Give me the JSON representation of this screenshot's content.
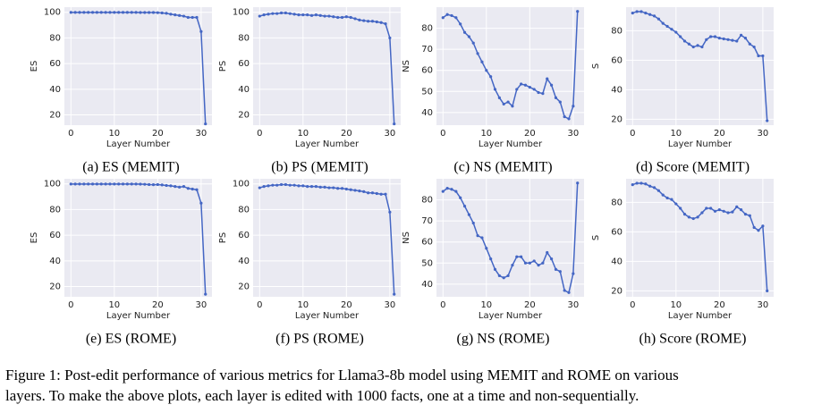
{
  "chart_data": [
    {
      "type": "line",
      "caption": "(a) ES (MEMIT)",
      "xlabel": "Layer Number",
      "ylabel": "ES",
      "color": "#4466c4",
      "grid": true,
      "x": [
        0,
        1,
        2,
        3,
        4,
        5,
        6,
        7,
        8,
        9,
        10,
        11,
        12,
        13,
        14,
        15,
        16,
        17,
        18,
        19,
        20,
        21,
        22,
        23,
        24,
        25,
        26,
        27,
        28,
        29,
        30,
        31
      ],
      "values": [
        99.9,
        99.9,
        99.9,
        99.9,
        99.9,
        99.9,
        99.9,
        99.9,
        99.9,
        99.9,
        99.9,
        99.9,
        99.9,
        99.9,
        99.9,
        99.9,
        99.8,
        99.8,
        99.8,
        99.8,
        99.7,
        99.5,
        99.2,
        98.5,
        98,
        97.5,
        97,
        96,
        96,
        96,
        85,
        13
      ],
      "xlim": [
        -1.5,
        32.5
      ],
      "ylim": [
        12,
        104
      ],
      "xticks": [
        0,
        10,
        20,
        30
      ],
      "yticks": [
        20,
        40,
        60,
        80,
        100
      ]
    },
    {
      "type": "line",
      "caption": "(b) PS (MEMIT)",
      "xlabel": "Layer Number",
      "ylabel": "PS",
      "color": "#4466c4",
      "grid": true,
      "x": [
        0,
        1,
        2,
        3,
        4,
        5,
        6,
        7,
        8,
        9,
        10,
        11,
        12,
        13,
        14,
        15,
        16,
        17,
        18,
        19,
        20,
        21,
        22,
        23,
        24,
        25,
        26,
        27,
        28,
        29,
        30,
        31
      ],
      "values": [
        97,
        98,
        98.5,
        99,
        99,
        99.5,
        99.5,
        99,
        98.5,
        98,
        98,
        98,
        97.5,
        98,
        97.5,
        97,
        97,
        96.5,
        96,
        96,
        96.5,
        96,
        95,
        94,
        93.5,
        93,
        93,
        92.5,
        92,
        91,
        80,
        13
      ],
      "xlim": [
        -1.5,
        32.5
      ],
      "ylim": [
        12,
        104
      ],
      "xticks": [
        0,
        10,
        20,
        30
      ],
      "yticks": [
        20,
        40,
        60,
        80,
        100
      ]
    },
    {
      "type": "line",
      "caption": "(c) NS (MEMIT)",
      "xlabel": "Layer Number",
      "ylabel": "NS",
      "color": "#4466c4",
      "grid": true,
      "x": [
        0,
        1,
        2,
        3,
        4,
        5,
        6,
        7,
        8,
        9,
        10,
        11,
        12,
        13,
        14,
        15,
        16,
        17,
        18,
        19,
        20,
        21,
        22,
        23,
        24,
        25,
        26,
        27,
        28,
        29,
        30,
        31
      ],
      "values": [
        85,
        86.5,
        86,
        85,
        82,
        78,
        76,
        73,
        68,
        64,
        60,
        57,
        51,
        47,
        44,
        45,
        43,
        51,
        53.5,
        53,
        52,
        51,
        49.5,
        49,
        56,
        53,
        47,
        45,
        38,
        37,
        43,
        88
      ],
      "xlim": [
        -1.5,
        32.5
      ],
      "ylim": [
        34,
        90
      ],
      "xticks": [
        0,
        10,
        20,
        30
      ],
      "yticks": [
        40,
        50,
        60,
        70,
        80
      ]
    },
    {
      "type": "line",
      "caption": "(d) Score (MEMIT)",
      "xlabel": "Layer Number",
      "ylabel": "S",
      "color": "#4466c4",
      "grid": true,
      "x": [
        0,
        1,
        2,
        3,
        4,
        5,
        6,
        7,
        8,
        9,
        10,
        11,
        12,
        13,
        14,
        15,
        16,
        17,
        18,
        19,
        20,
        21,
        22,
        23,
        24,
        25,
        26,
        27,
        28,
        29,
        30,
        31
      ],
      "values": [
        92,
        93,
        93,
        92,
        91,
        90,
        88,
        85,
        83,
        81,
        79,
        76,
        73,
        71,
        69,
        70,
        69,
        74,
        76,
        76,
        75,
        74.5,
        74,
        73.5,
        73,
        77,
        75,
        71,
        69,
        63,
        63,
        19
      ],
      "xlim": [
        -1.5,
        32.5
      ],
      "ylim": [
        16,
        96
      ],
      "xticks": [
        0,
        10,
        20,
        30
      ],
      "yticks": [
        20,
        40,
        60,
        80
      ]
    },
    {
      "type": "line",
      "caption": "(e) ES (ROME)",
      "xlabel": "Layer Number",
      "ylabel": "ES",
      "color": "#4466c4",
      "grid": true,
      "x": [
        0,
        1,
        2,
        3,
        4,
        5,
        6,
        7,
        8,
        9,
        10,
        11,
        12,
        13,
        14,
        15,
        16,
        17,
        18,
        19,
        20,
        21,
        22,
        23,
        24,
        25,
        26,
        27,
        28,
        29,
        30,
        31
      ],
      "values": [
        99.9,
        99.9,
        99.9,
        99.9,
        99.9,
        99.9,
        99.9,
        99.9,
        99.9,
        99.9,
        99.9,
        99.9,
        99.9,
        99.9,
        99.9,
        99.9,
        99.8,
        99.7,
        99.5,
        99.4,
        99.5,
        99.2,
        98.8,
        98.5,
        98,
        97.5,
        98,
        96.5,
        96,
        95.5,
        85,
        14
      ],
      "xlim": [
        -1.5,
        32.5
      ],
      "ylim": [
        12,
        104
      ],
      "xticks": [
        0,
        10,
        20,
        30
      ],
      "yticks": [
        20,
        40,
        60,
        80,
        100
      ]
    },
    {
      "type": "line",
      "caption": "(f) PS (ROME)",
      "xlabel": "Layer Number",
      "ylabel": "PS",
      "color": "#4466c4",
      "grid": true,
      "x": [
        0,
        1,
        2,
        3,
        4,
        5,
        6,
        7,
        8,
        9,
        10,
        11,
        12,
        13,
        14,
        15,
        16,
        17,
        18,
        19,
        20,
        21,
        22,
        23,
        24,
        25,
        26,
        27,
        28,
        29,
        30,
        31
      ],
      "values": [
        97,
        98,
        98.5,
        99,
        99,
        99.5,
        99.5,
        99,
        99,
        98.5,
        98.5,
        98,
        98,
        98,
        97.5,
        97.5,
        97,
        97,
        96.5,
        96.5,
        96,
        95.5,
        95,
        94.5,
        94,
        93,
        93,
        92.5,
        92,
        92,
        78,
        14
      ],
      "xlim": [
        -1.5,
        32.5
      ],
      "ylim": [
        12,
        104
      ],
      "xticks": [
        0,
        10,
        20,
        30
      ],
      "yticks": [
        20,
        40,
        60,
        80,
        100
      ]
    },
    {
      "type": "line",
      "caption": "(g) NS (ROME)",
      "xlabel": "Layer Number",
      "ylabel": "NS",
      "color": "#4466c4",
      "grid": true,
      "x": [
        0,
        1,
        2,
        3,
        4,
        5,
        6,
        7,
        8,
        9,
        10,
        11,
        12,
        13,
        14,
        15,
        16,
        17,
        18,
        19,
        20,
        21,
        22,
        23,
        24,
        25,
        26,
        27,
        28,
        29,
        30,
        31
      ],
      "values": [
        84,
        85.5,
        85,
        84,
        81,
        77,
        73,
        69,
        63,
        62,
        57,
        52,
        47,
        44,
        43,
        44,
        49,
        53,
        53,
        50,
        50,
        51,
        49,
        50,
        55,
        52,
        47,
        46,
        37,
        36,
        45,
        88
      ],
      "xlim": [
        -1.5,
        32.5
      ],
      "ylim": [
        34,
        90
      ],
      "xticks": [
        0,
        10,
        20,
        30
      ],
      "yticks": [
        40,
        50,
        60,
        70,
        80
      ]
    },
    {
      "type": "line",
      "caption": "(h) Score (ROME)",
      "xlabel": "Layer Number",
      "ylabel": "S",
      "color": "#4466c4",
      "grid": true,
      "x": [
        0,
        1,
        2,
        3,
        4,
        5,
        6,
        7,
        8,
        9,
        10,
        11,
        12,
        13,
        14,
        15,
        16,
        17,
        18,
        19,
        20,
        21,
        22,
        23,
        24,
        25,
        26,
        27,
        28,
        29,
        30,
        31
      ],
      "values": [
        92,
        93,
        93,
        92.5,
        91,
        90,
        88,
        85,
        83,
        82,
        79,
        76,
        72,
        70,
        69,
        70,
        73,
        76,
        76,
        74,
        75,
        74,
        73,
        73.5,
        77,
        75,
        72,
        71,
        63,
        61,
        64,
        20
      ],
      "xlim": [
        -1.5,
        32.5
      ],
      "ylim": [
        16,
        96
      ],
      "xticks": [
        0,
        10,
        20,
        30
      ],
      "yticks": [
        20,
        40,
        60,
        80
      ]
    }
  ],
  "caption": [
    "Figure 1: Post-edit performance of various metrics for Llama3-8b model using MEMIT and ROME on various",
    "layers. To make the above plots, each layer is edited with 1000 facts, one at a time and non-sequentially."
  ]
}
